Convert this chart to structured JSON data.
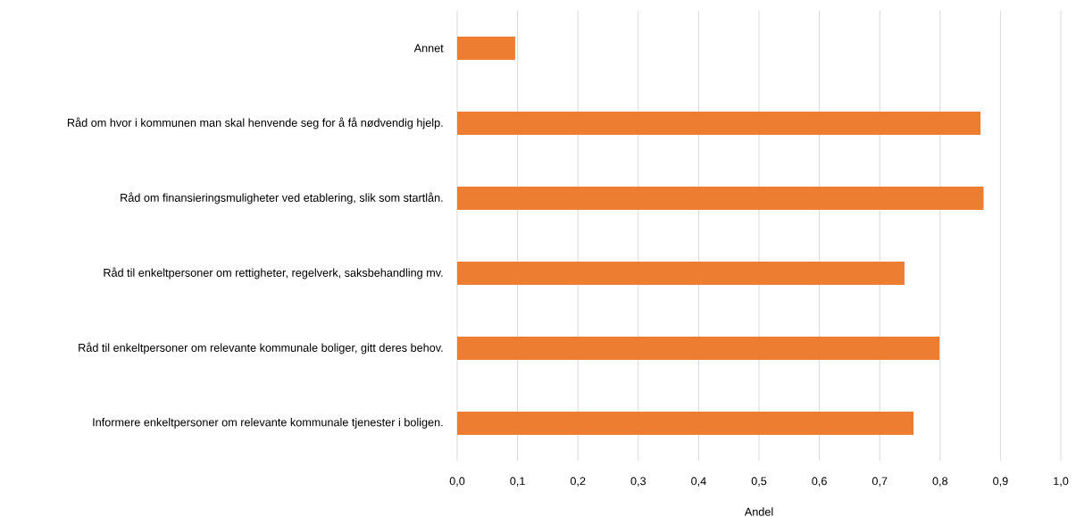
{
  "chart_data": {
    "type": "bar",
    "orientation": "horizontal",
    "categories": [
      "Annet",
      "Råd om hvor i kommunen man skal henvende seg for å få nødvendig hjelp.",
      "Råd om finansieringsmuligheter ved etablering, slik som startlån.",
      "Råd til enkeltpersoner om rettigheter, regelverk, saksbehandling mv.",
      "Råd til enkeltpersoner om relevante kommunale boliger, gitt deres behov.",
      "Informere enkeltpersoner om relevante kommunale tjenester i boligen."
    ],
    "values": [
      0.096,
      0.867,
      0.872,
      0.741,
      0.799,
      0.756
    ],
    "color": "#ed7d31",
    "xlabel": "Andel",
    "xlim": [
      0,
      1
    ],
    "xticks": [
      {
        "value": 0,
        "label": "0,0"
      },
      {
        "value": 0.1,
        "label": "0,1"
      },
      {
        "value": 0.2,
        "label": "0,2"
      },
      {
        "value": 0.3,
        "label": "0,3"
      },
      {
        "value": 0.4,
        "label": "0,4"
      },
      {
        "value": 0.5,
        "label": "0,5"
      },
      {
        "value": 0.6,
        "label": "0,6"
      },
      {
        "value": 0.7,
        "label": "0,7"
      },
      {
        "value": 0.8,
        "label": "0,8"
      },
      {
        "value": 0.9,
        "label": "0,9"
      },
      {
        "value": 1,
        "label": "1,0"
      }
    ],
    "grid": "x"
  }
}
